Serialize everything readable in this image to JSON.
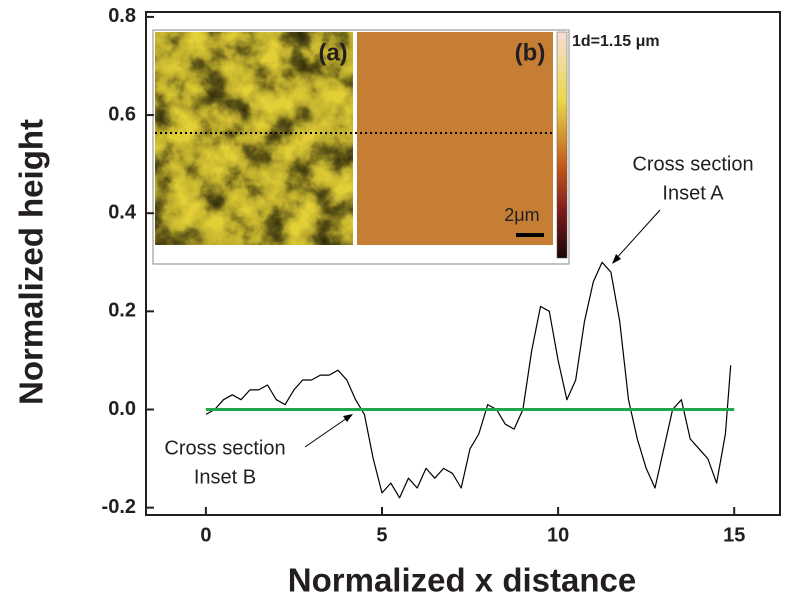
{
  "chart_data": {
    "type": "line",
    "xlabel": "Normalized x distance",
    "ylabel": "Normalized height",
    "xlim": [
      -1.7,
      16.3
    ],
    "ylim": [
      -0.215,
      0.81
    ],
    "xticks": [
      0,
      5,
      10,
      15
    ],
    "yticks": [
      -0.2,
      {
        "value": 0,
        "label": "0.0"
      },
      0.2,
      0.4,
      0.6,
      0.8
    ],
    "series": [
      {
        "color": "#000000",
        "x": [
          0,
          0.25,
          0.5,
          0.75,
          1.0,
          1.25,
          1.5,
          1.75,
          2.0,
          2.25,
          2.5,
          2.75,
          3.0,
          3.25,
          3.5,
          3.75,
          4.0,
          4.25,
          4.5,
          4.75,
          5.0,
          5.25,
          5.5,
          5.75,
          6.0,
          6.25,
          6.5,
          6.75,
          7.0,
          7.25,
          7.5,
          7.75,
          8.0,
          8.25,
          8.5,
          8.75,
          9.0,
          9.25,
          9.5,
          9.75,
          10.0,
          10.25,
          10.5,
          10.75,
          11.0,
          11.25,
          11.5,
          11.75,
          12.0,
          12.25,
          12.5,
          12.75,
          13.0,
          13.25,
          13.5,
          13.75,
          14.0,
          14.25,
          14.5,
          14.75,
          14.9
        ],
        "values": [
          -0.01,
          0.0,
          0.02,
          0.03,
          0.02,
          0.04,
          0.04,
          0.05,
          0.02,
          0.01,
          0.04,
          0.06,
          0.06,
          0.07,
          0.07,
          0.08,
          0.06,
          0.02,
          -0.01,
          -0.1,
          -0.17,
          -0.15,
          -0.18,
          -0.14,
          -0.16,
          -0.12,
          -0.14,
          -0.12,
          -0.13,
          -0.16,
          -0.08,
          -0.05,
          0.01,
          0.0,
          -0.03,
          -0.04,
          0.0,
          0.12,
          0.21,
          0.2,
          0.1,
          0.02,
          0.06,
          0.18,
          0.26,
          0.3,
          0.28,
          0.18,
          0.02,
          -0.06,
          -0.12,
          -0.16,
          -0.08,
          0.0,
          0.02,
          -0.06,
          -0.08,
          -0.1,
          -0.15,
          -0.05,
          0.09
        ]
      },
      {
        "color": "#1fa74a",
        "x": [
          0,
          3,
          6,
          9,
          12,
          15
        ],
        "values": [
          0,
          0,
          0,
          0,
          0,
          0
        ]
      }
    ],
    "annotations": [
      {
        "lines": [
          "Cross section",
          "Inset A"
        ]
      },
      {
        "lines": [
          "Cross section",
          "Inset B"
        ]
      }
    ],
    "inset": {
      "labels": [
        "(a)",
        "(b)"
      ],
      "colorbar_label": "1d=1.15 μm",
      "scale_bar": "2μm"
    }
  }
}
